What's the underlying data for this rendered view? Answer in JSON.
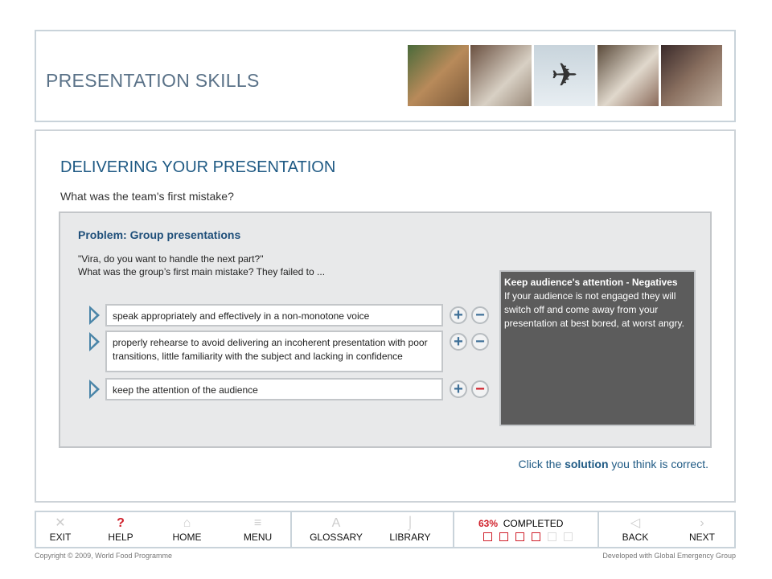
{
  "header": {
    "title": "PRESENTATION SKILLS",
    "photos": [
      "aid-worker-photo",
      "girl-with-sacks-photo",
      "cargo-plane-photo",
      "food-sacks-photo",
      "mother-and-child-photo"
    ]
  },
  "main": {
    "section_title": "DELIVERING YOUR PRESENTATION",
    "question": "What was the team's first mistake?",
    "panel": {
      "title": "Problem: Group presentations",
      "quote_line1": "\"Vira, do you want to handle the next part?\"",
      "quote_line2": "What was the group’s first main mistake?  They failed to ...",
      "options": [
        {
          "text": "speak appropriately and effectively in a non-monotone voice",
          "minus_active": false
        },
        {
          "text": "properly rehearse to avoid delivering an incoherent presentation with poor transitions, little familiarity with the subject and lacking in confidence",
          "minus_active": false
        },
        {
          "text": "keep the attention of the audience",
          "minus_active": true
        }
      ],
      "feedback": {
        "title": "Keep audience's attention - Negatives",
        "body": "If your audience is not engaged they will switch off and come away from your presentation at best bored, at worst angry."
      }
    },
    "instruction_pre": "Click the ",
    "instruction_bold": "solution",
    "instruction_post": " you think is correct."
  },
  "footer": {
    "nav": [
      {
        "label": "EXIT",
        "icon": "x-icon"
      },
      {
        "label": "HELP",
        "icon": "question-icon"
      },
      {
        "label": "HOME",
        "icon": "home-icon"
      },
      {
        "label": "MENU",
        "icon": "menu-icon"
      },
      {
        "label": "GLOSSARY",
        "icon": "glossary-icon"
      },
      {
        "label": "LIBRARY",
        "icon": "library-icon"
      }
    ],
    "progress": {
      "percent": "63%",
      "label": "COMPLETED",
      "value": 63,
      "boxes_total": 6,
      "boxes_done": 4
    },
    "back": "BACK",
    "next": "NEXT",
    "copyright": "Copyright © 2009, World Food Programme",
    "developer": "Developed with Global Emergency Group"
  },
  "colors": {
    "accent": "#1f5a84",
    "red": "#d0202b"
  }
}
